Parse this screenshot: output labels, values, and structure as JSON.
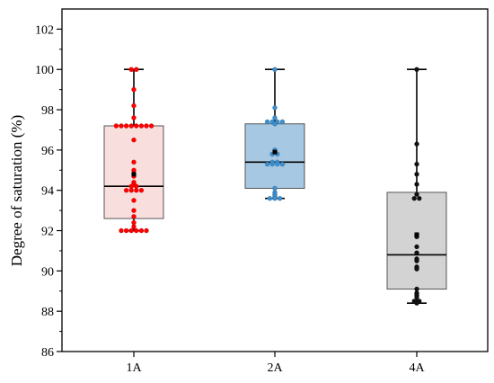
{
  "chart_data": {
    "type": "box",
    "ylabel": "Degree of saturation (%)",
    "xlabel": "",
    "ylim": [
      86,
      103
    ],
    "yticks": [
      86,
      88,
      90,
      92,
      94,
      96,
      98,
      100,
      102
    ],
    "grid": false,
    "legend": "none",
    "series": [
      {
        "category": "1A",
        "box_fill": "#f9dede",
        "point_color": "#ff0000",
        "min": 92.0,
        "q1": 92.6,
        "median": 94.2,
        "q3": 97.2,
        "max": 100.0,
        "mean": 94.8,
        "points": [
          100.0,
          100.0,
          99.0,
          98.2,
          97.6,
          97.2,
          97.2,
          97.2,
          97.2,
          97.2,
          97.2,
          97.2,
          97.2,
          96.5,
          95.4,
          95.0,
          94.8,
          94.7,
          94.4,
          94.3,
          94.2,
          94.2,
          94.0,
          94.0,
          94.0,
          94.0,
          93.5,
          93.0,
          92.7,
          92.4,
          92.2,
          92.0,
          92.0,
          92.0,
          92.0,
          92.0,
          92.0
        ]
      },
      {
        "category": "2A",
        "box_fill": "#a7c8e3",
        "point_color": "#3d8fce",
        "min": 93.6,
        "q1": 94.1,
        "median": 95.4,
        "q3": 97.3,
        "max": 100.0,
        "mean": 95.9,
        "points": [
          100.0,
          98.1,
          97.6,
          97.4,
          97.4,
          97.4,
          97.4,
          97.3,
          96.0,
          95.8,
          95.8,
          95.4,
          95.4,
          95.3,
          95.3,
          95.3,
          95.3,
          94.1,
          93.9,
          93.8,
          93.7,
          93.6,
          93.6,
          93.6
        ]
      },
      {
        "category": "4A",
        "box_fill": "#d3d3d3",
        "point_color": "#111111",
        "min": 88.4,
        "q1": 89.1,
        "median": 90.8,
        "q3": 93.9,
        "max": 100.0,
        "mean": 91.8,
        "points": [
          100.0,
          96.3,
          95.3,
          94.8,
          94.3,
          93.8,
          93.6,
          93.6,
          91.8,
          91.7,
          91.2,
          90.9,
          90.6,
          90.5,
          90.2,
          90.1,
          89.1,
          88.9,
          88.8,
          88.7,
          88.5,
          88.5,
          88.4
        ]
      }
    ]
  }
}
